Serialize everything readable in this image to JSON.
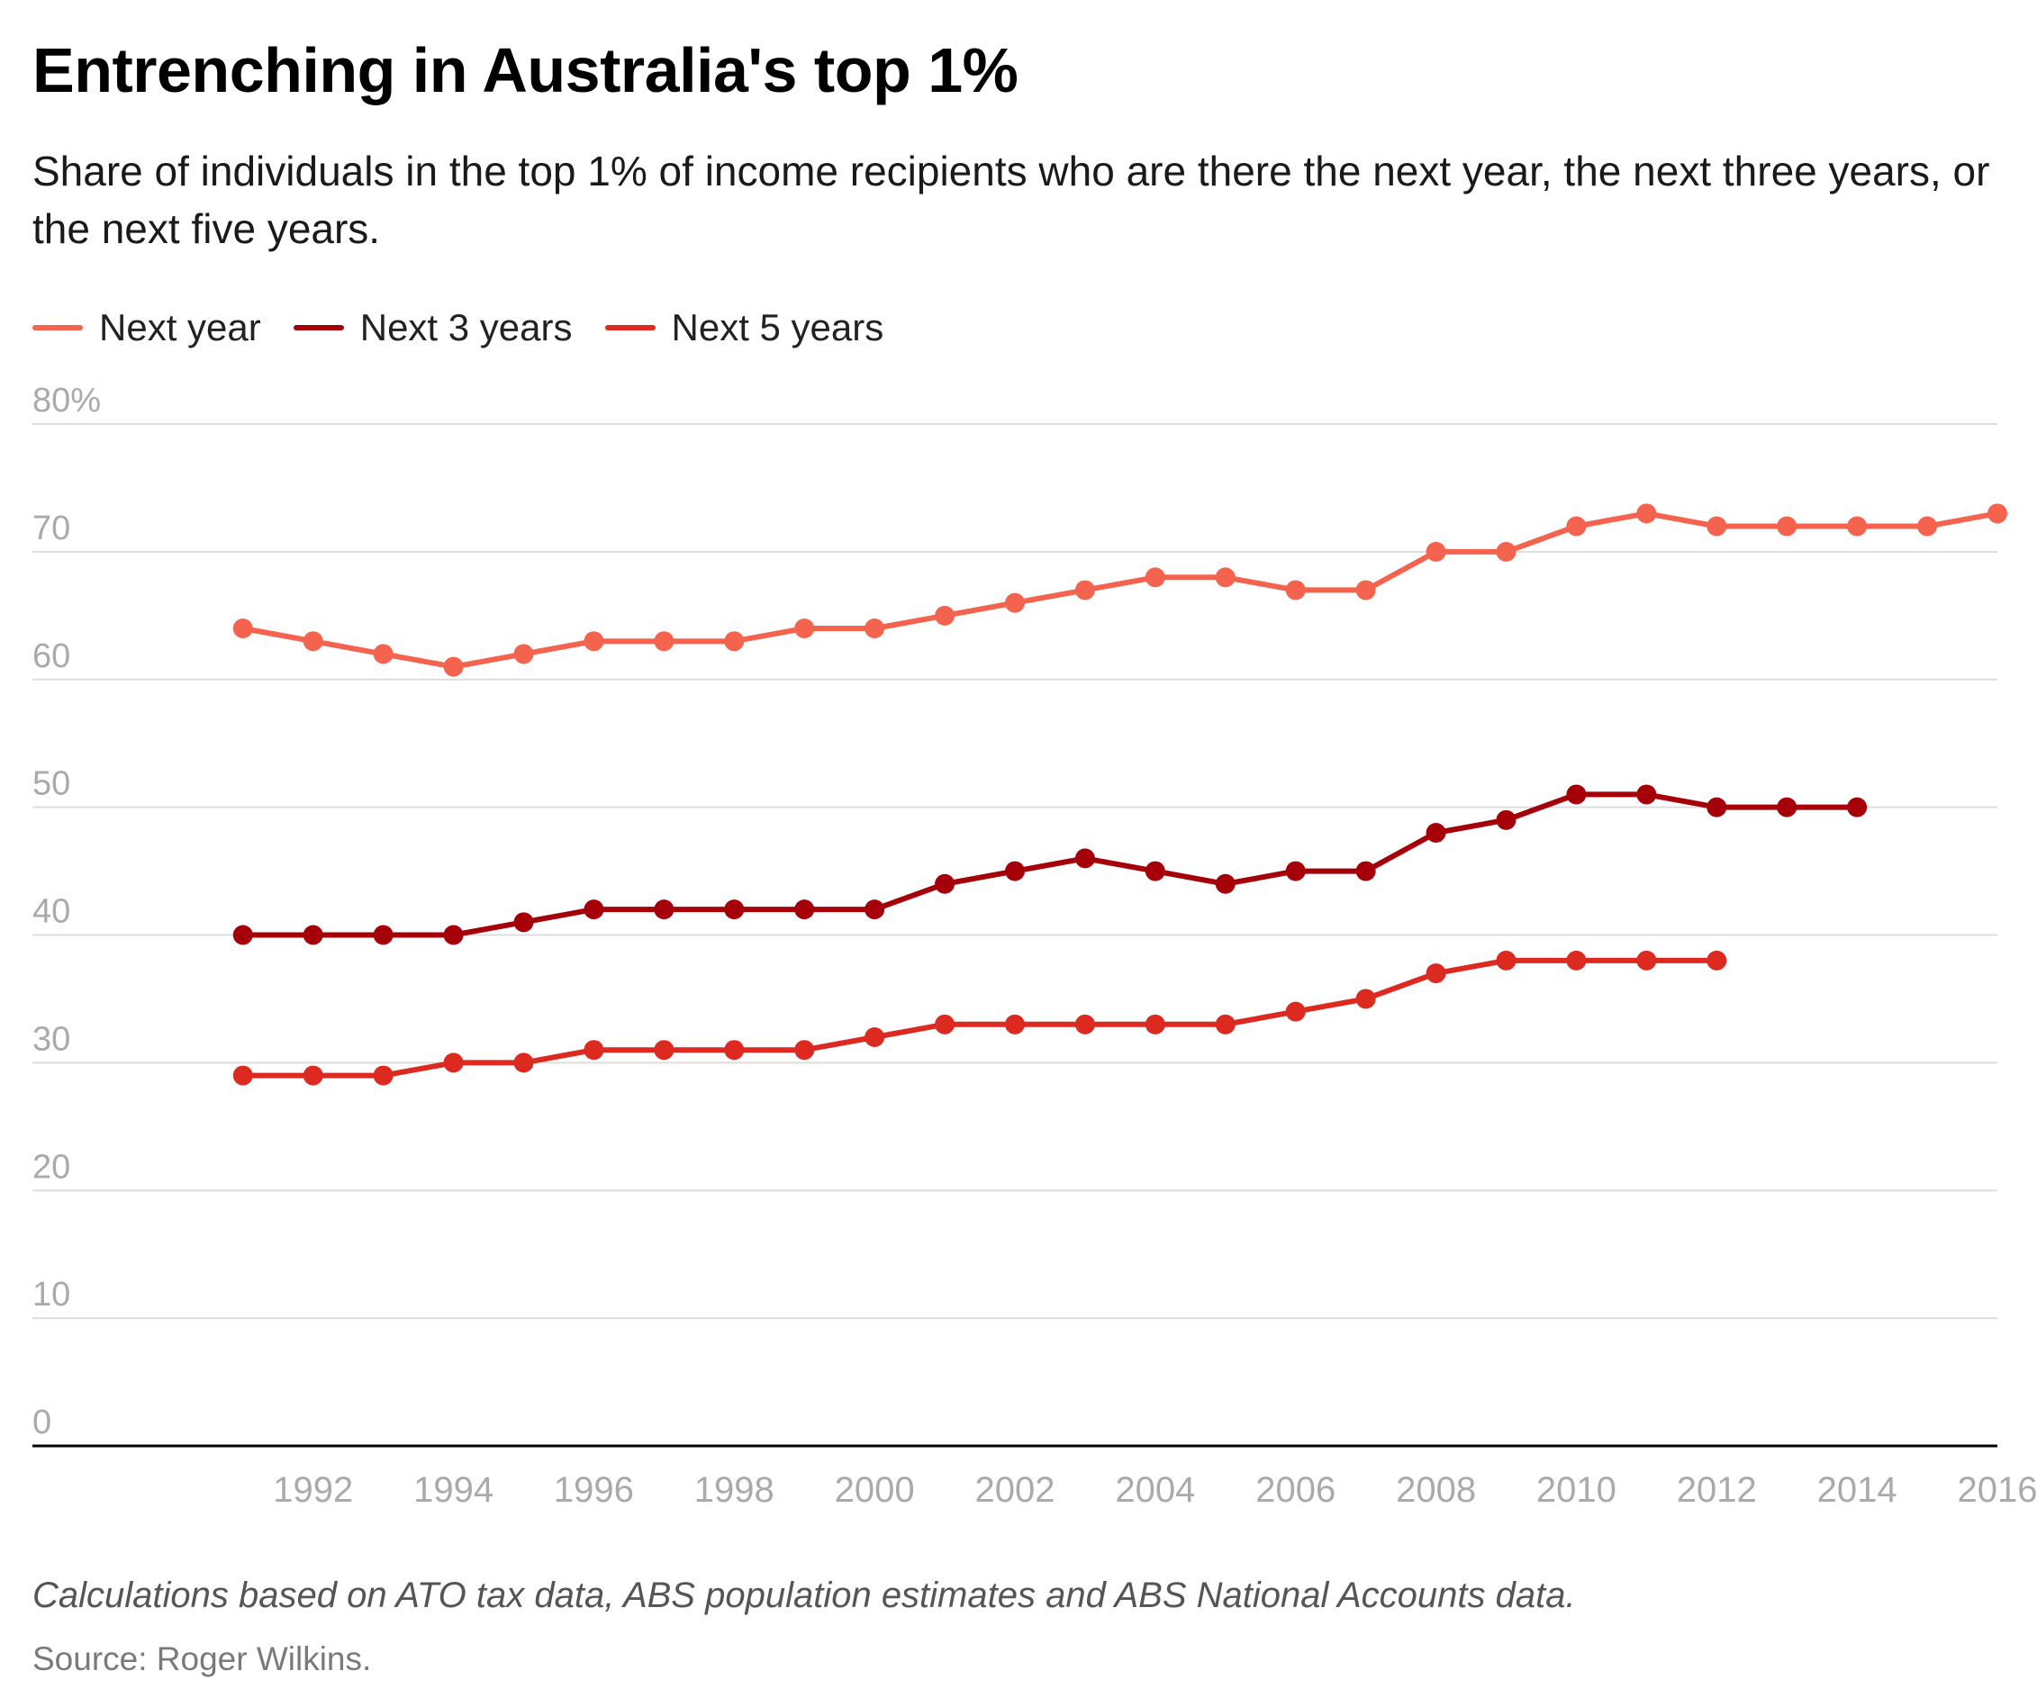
{
  "header": {
    "title": "Entrenching in Australia's top 1%",
    "subtitle": "Share of individuals in the top 1% of income recipients who are there the next year, the next three years, or the next five years."
  },
  "footer": {
    "note": "Calculations based on ATO tax data, ABS population estimates and ABS National Accounts data.",
    "source": "Source: Roger Wilkins."
  },
  "colors": {
    "next_year": "#f4634d",
    "next_3_years": "#a50009",
    "next_5_years": "#dc2a20",
    "grid": "#dddddd",
    "axis": "#000000",
    "tick_label": "#aaaaaa"
  },
  "chart_data": {
    "type": "line",
    "title": "Entrenching in Australia's top 1%",
    "subtitle": "Share of individuals in the top 1% of income recipients who are there the next year, the next three years, or the next five years.",
    "xlabel": "",
    "ylabel": "",
    "xlim": [
      1988,
      2016
    ],
    "ylim": [
      0,
      80
    ],
    "grid": true,
    "legend_position": "top-left",
    "x_ticks": [
      "1992",
      "1994",
      "1996",
      "1998",
      "2000",
      "2002",
      "2004",
      "2006",
      "2008",
      "2010",
      "2012",
      "2014",
      "2016"
    ],
    "y_ticks": [
      "0",
      "10",
      "20",
      "30",
      "40",
      "50",
      "60",
      "70",
      "80%"
    ],
    "y_tick_values": [
      0,
      10,
      20,
      30,
      40,
      50,
      60,
      70,
      80
    ],
    "series": [
      {
        "name": "Next year",
        "color": "#f4634d",
        "points": [
          [
            1991,
            64
          ],
          [
            1992,
            63
          ],
          [
            1993,
            62
          ],
          [
            1994,
            61
          ],
          [
            1995,
            62
          ],
          [
            1996,
            63
          ],
          [
            1997,
            63
          ],
          [
            1998,
            63
          ],
          [
            1999,
            64
          ],
          [
            2000,
            64
          ],
          [
            2001,
            65
          ],
          [
            2002,
            66
          ],
          [
            2003,
            67
          ],
          [
            2004,
            68
          ],
          [
            2005,
            68
          ],
          [
            2006,
            67
          ],
          [
            2007,
            67
          ],
          [
            2008,
            70
          ],
          [
            2009,
            70
          ],
          [
            2010,
            72
          ],
          [
            2011,
            73
          ],
          [
            2012,
            72
          ],
          [
            2013,
            72
          ],
          [
            2014,
            72
          ],
          [
            2015,
            72
          ],
          [
            2016,
            73
          ]
        ]
      },
      {
        "name": "Next 3 years",
        "color": "#a50009",
        "points": [
          [
            1991,
            40
          ],
          [
            1992,
            40
          ],
          [
            1993,
            40
          ],
          [
            1994,
            40
          ],
          [
            1995,
            41
          ],
          [
            1996,
            42
          ],
          [
            1997,
            42
          ],
          [
            1998,
            42
          ],
          [
            1999,
            42
          ],
          [
            2000,
            42
          ],
          [
            2001,
            44
          ],
          [
            2002,
            45
          ],
          [
            2003,
            46
          ],
          [
            2004,
            45
          ],
          [
            2005,
            44
          ],
          [
            2006,
            45
          ],
          [
            2007,
            45
          ],
          [
            2008,
            48
          ],
          [
            2009,
            49
          ],
          [
            2010,
            51
          ],
          [
            2011,
            51
          ],
          [
            2012,
            50
          ],
          [
            2013,
            50
          ],
          [
            2014,
            50
          ]
        ]
      },
      {
        "name": "Next 5 years",
        "color": "#dc2a20",
        "points": [
          [
            1991,
            29
          ],
          [
            1992,
            29
          ],
          [
            1993,
            29
          ],
          [
            1994,
            30
          ],
          [
            1995,
            30
          ],
          [
            1996,
            31
          ],
          [
            1997,
            31
          ],
          [
            1998,
            31
          ],
          [
            1999,
            31
          ],
          [
            2000,
            32
          ],
          [
            2001,
            33
          ],
          [
            2002,
            33
          ],
          [
            2003,
            33
          ],
          [
            2004,
            33
          ],
          [
            2005,
            33
          ],
          [
            2006,
            34
          ],
          [
            2007,
            35
          ],
          [
            2008,
            37
          ],
          [
            2009,
            38
          ],
          [
            2010,
            38
          ],
          [
            2011,
            38
          ],
          [
            2012,
            38
          ]
        ]
      }
    ]
  }
}
